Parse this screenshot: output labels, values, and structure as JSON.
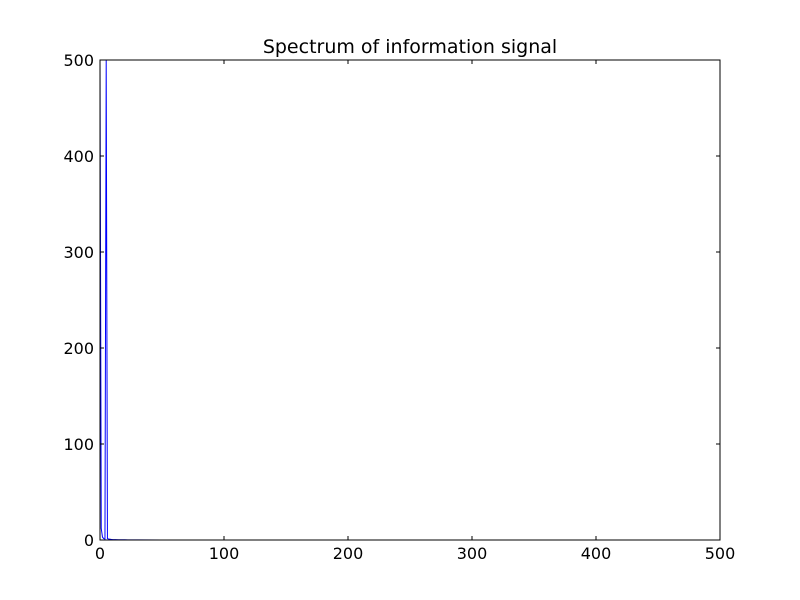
{
  "chart_data": {
    "type": "line",
    "title": "Spectrum of information signal",
    "xlabel": "",
    "ylabel": "",
    "xlim": [
      0,
      500
    ],
    "ylim": [
      0,
      500
    ],
    "xticks": [
      0,
      100,
      200,
      300,
      400,
      500
    ],
    "yticks": [
      0,
      100,
      200,
      300,
      400,
      500
    ],
    "xtick_labels": [
      "0",
      "100",
      "200",
      "300",
      "400",
      "500"
    ],
    "ytick_labels": [
      "0",
      "100",
      "200",
      "300",
      "400",
      "500"
    ],
    "grid": false,
    "line_color": "#0000ff",
    "series": [
      {
        "x": [
          0,
          1,
          2,
          3,
          4,
          5,
          6,
          7,
          8,
          9,
          10,
          15,
          20,
          30,
          50,
          100,
          200,
          300,
          400,
          500
        ],
        "y": [
          500,
          12,
          3,
          1.5,
          1,
          500,
          1.5,
          1,
          0.8,
          0.6,
          0.5,
          0.3,
          0.2,
          0.1,
          0.05,
          0.02,
          0.01,
          0.01,
          0.01,
          0
        ]
      }
    ]
  }
}
